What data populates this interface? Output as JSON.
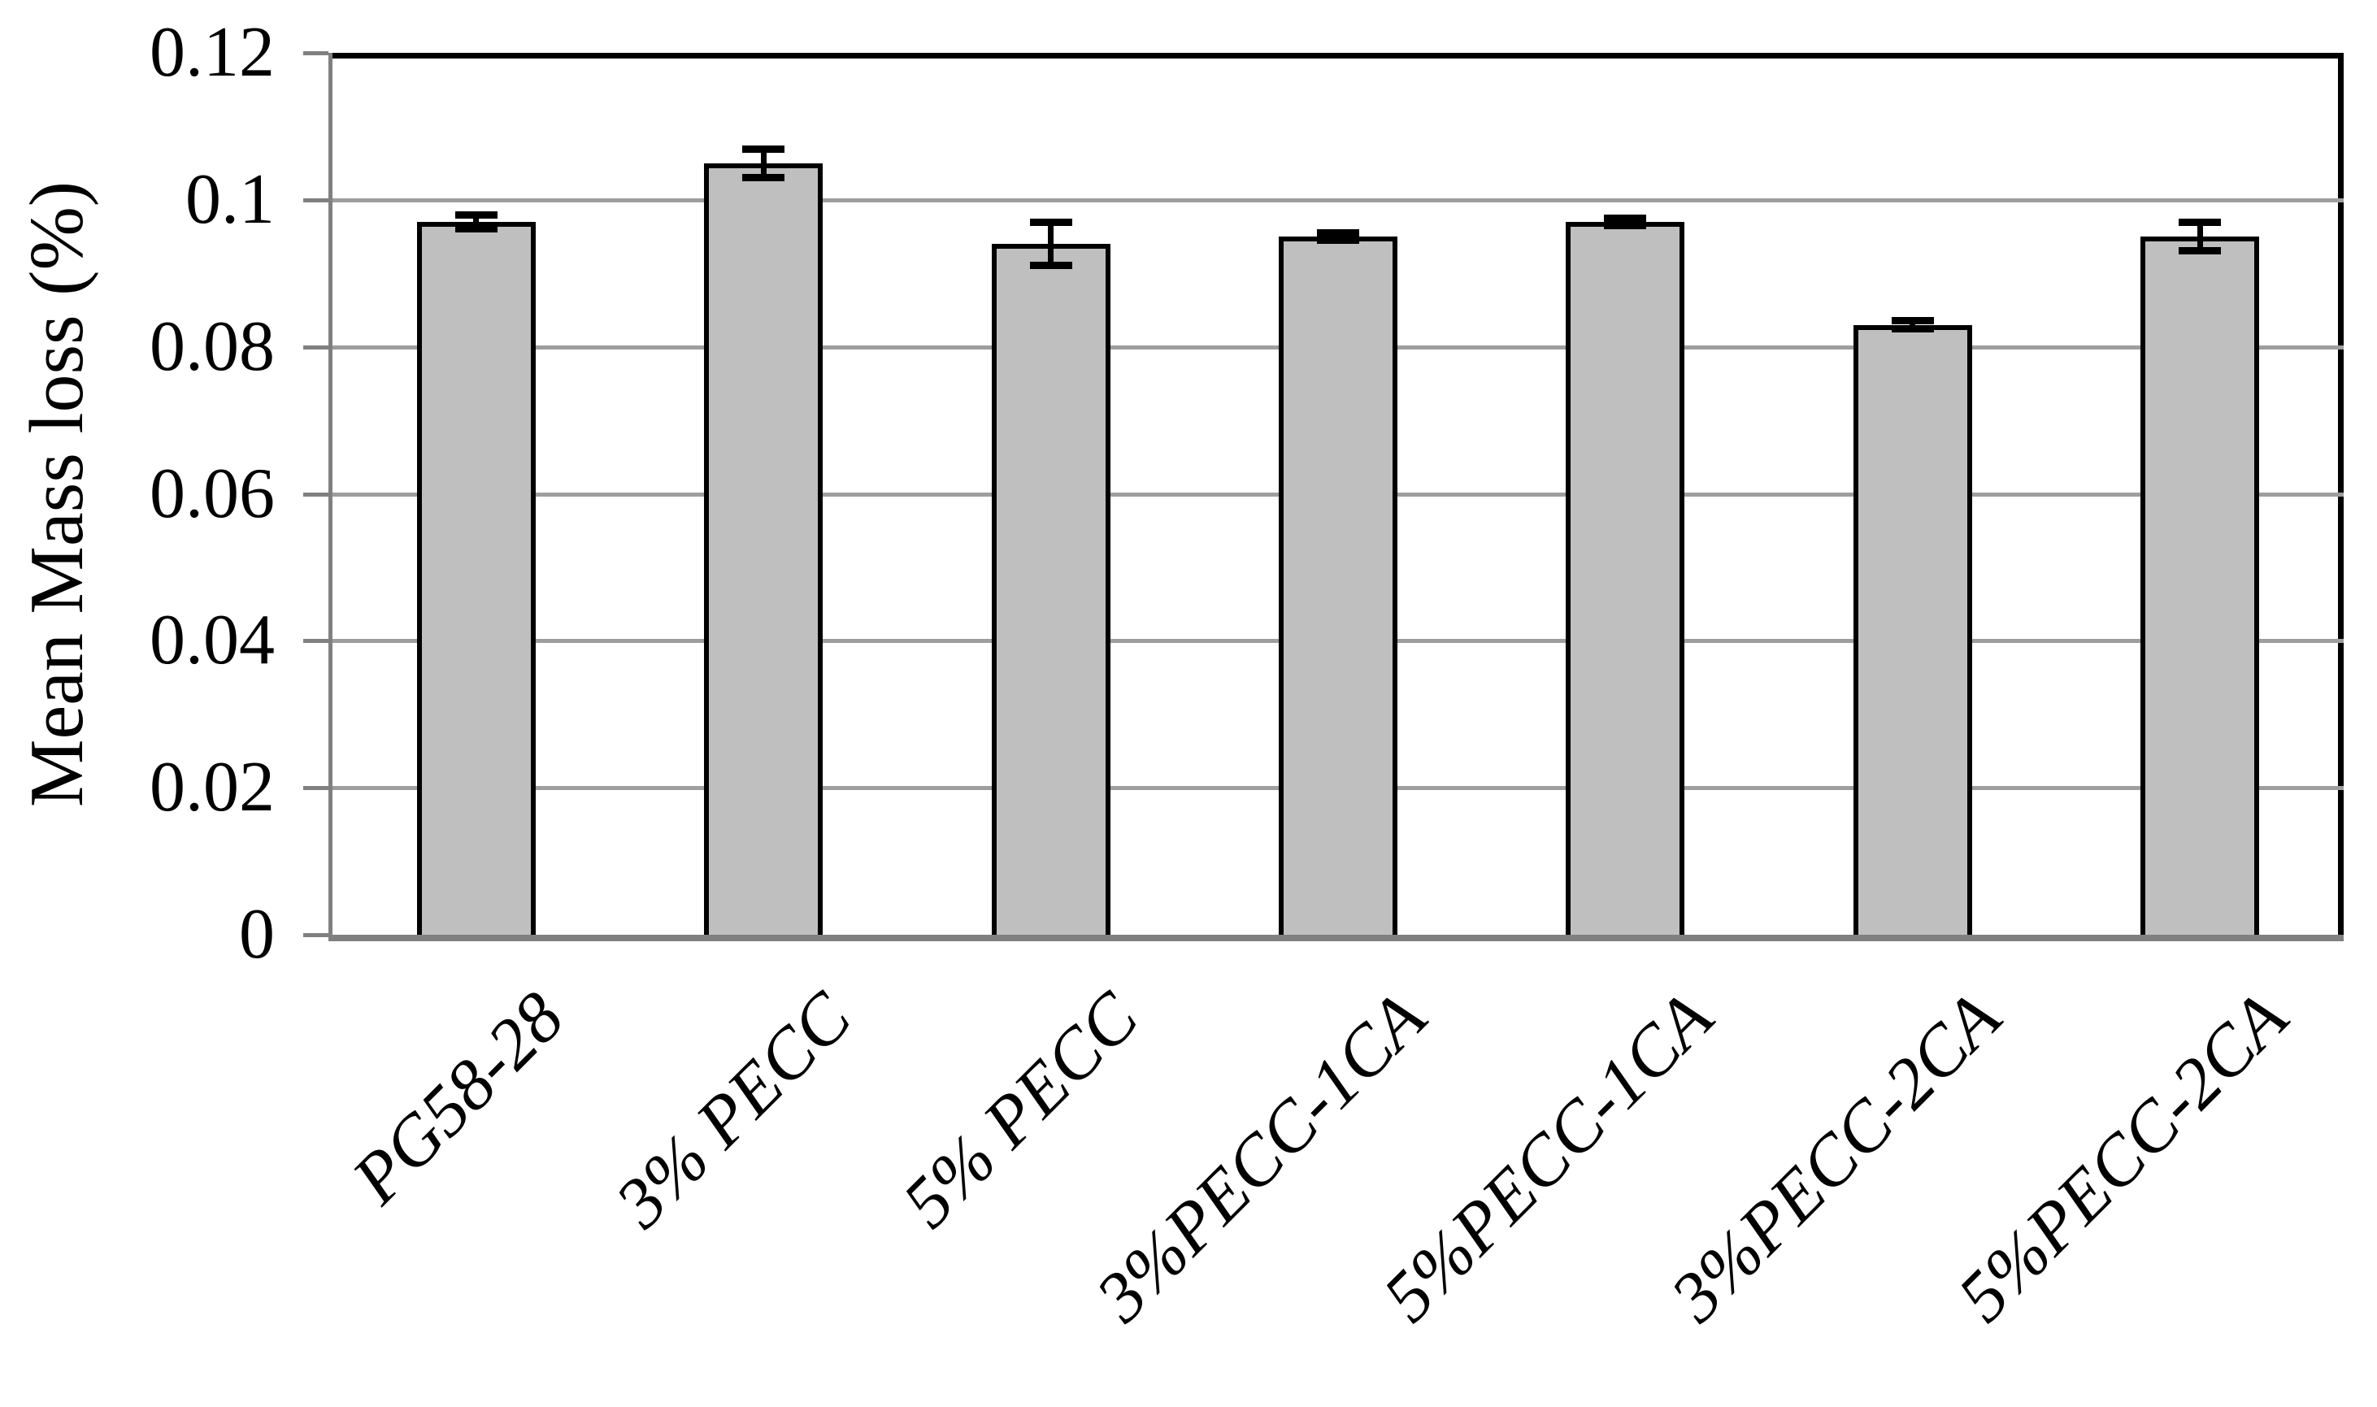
{
  "chart_data": {
    "type": "bar",
    "title": "",
    "xlabel": "",
    "ylabel": "Mean Mass loss (%)",
    "categories": [
      "PG58-28",
      "3% PECC",
      "5% PECC",
      "3%PECC-1CA",
      "5%PECC-1CA",
      "3%PECC-2CA",
      "5%PECC-2CA"
    ],
    "values": [
      0.097,
      0.105,
      0.094,
      0.095,
      0.097,
      0.083,
      0.095
    ],
    "error_bars": [
      0.001,
      0.002,
      0.003,
      0.0006,
      0.0006,
      0.0006,
      0.002
    ],
    "ylim": [
      0,
      0.12
    ],
    "ytick_step": 0.02,
    "ytick_labels": [
      "0",
      "0.02",
      "0.04",
      "0.06",
      "0.08",
      "0.1",
      "0.12"
    ],
    "grid": "horizontal",
    "legend": "none",
    "colors": {
      "background": "#ffffff",
      "bar_fill": "#bfbfbf",
      "bar_border": "#000000",
      "gridline": "#9e9e9e",
      "axis": "#808080",
      "plot_border": "#000000",
      "text": "#000000"
    }
  }
}
